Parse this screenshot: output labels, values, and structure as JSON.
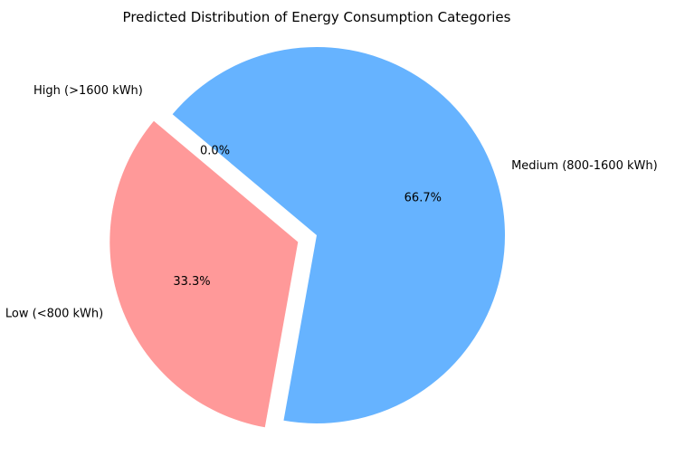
{
  "chart_data": {
    "type": "pie",
    "title": "Predicted Distribution of Energy Consumption Categories",
    "slices": [
      {
        "label": "Low (<800 kWh)",
        "value": 33.3,
        "percent_label": "33.3%",
        "color": "#ff9999",
        "exploded": true
      },
      {
        "label": "Medium (800-1600 kWh)",
        "value": 66.7,
        "percent_label": "66.7%",
        "color": "#66b3ff",
        "exploded": false
      },
      {
        "label": "High (>1600 kWh)",
        "value": 0.0,
        "percent_label": "0.0%",
        "color": "#99ff99",
        "exploded": true
      }
    ],
    "start_angle_deg": 140,
    "legend": "none"
  }
}
